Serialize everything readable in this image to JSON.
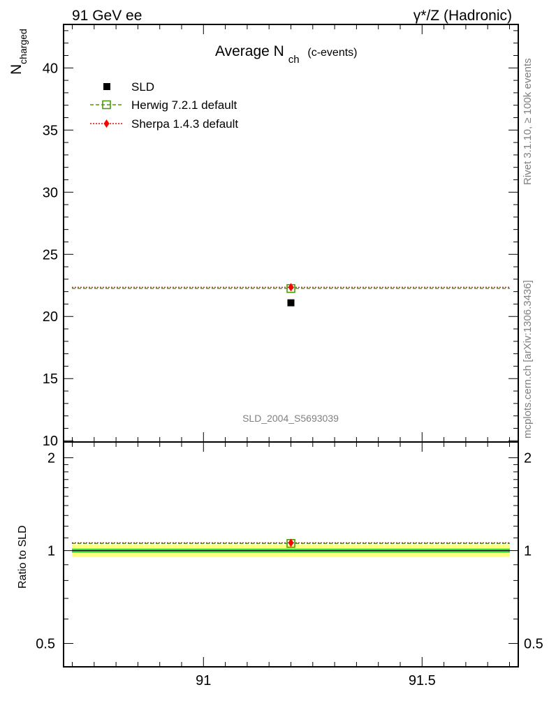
{
  "header": {
    "left": "91 GeV ee",
    "right": "γ*/Z (Hadronic)"
  },
  "side_labels": {
    "rivet": "Rivet 3.1.10, ≥ 100k events",
    "mcplots": "mcplots.cern.ch [arXiv:1306.3436]"
  },
  "watermark": "SLD_2004_S5693039",
  "colors": {
    "data": "#000000",
    "herwig": "#4a9a0a",
    "sherpa": "#ff0000",
    "band_inner": "#2fd62f",
    "band_outer": "#ffff80"
  },
  "chart_data": [
    {
      "type": "scatter",
      "panel": "main",
      "title": "Average N",
      "title_sub": "ch",
      "title_suffix": "(c-events)",
      "ylabel": "N",
      "ylabel_sub": "charged",
      "xlim": [
        90.68,
        91.72
      ],
      "ylim": [
        9.9,
        43.5
      ],
      "yticks": [
        10,
        15,
        20,
        25,
        30,
        35,
        40
      ],
      "ytick_labels": [
        "10",
        "15",
        "20",
        "25",
        "30",
        "35",
        "40"
      ],
      "legend_position": "top-left",
      "series": [
        {
          "name": "SLD",
          "style": "data",
          "x": [
            91.2
          ],
          "y": [
            21.1
          ]
        },
        {
          "name": "Herwig 7.2.1 default",
          "style": "herwig",
          "x": [
            91.2
          ],
          "y": [
            22.25
          ]
        },
        {
          "name": "Sherpa 1.4.3 default",
          "style": "sherpa",
          "x": [
            91.2
          ],
          "y": [
            22.35
          ]
        }
      ]
    },
    {
      "type": "scatter",
      "panel": "ratio",
      "ylabel": "Ratio to SLD",
      "log_y": true,
      "xlim": [
        90.68,
        91.72
      ],
      "ylim": [
        0.42,
        2.25
      ],
      "yticks": [
        0.5,
        1,
        2
      ],
      "ytick_labels": [
        "0.5",
        "1",
        "2"
      ],
      "xticks": [
        91,
        91.5
      ],
      "xtick_labels": [
        "91",
        "91.5"
      ],
      "band": {
        "inner": [
          0.985,
          1.015
        ],
        "outer": [
          0.955,
          1.045
        ]
      },
      "series": [
        {
          "name": "Herwig 7.2.1 default",
          "style": "herwig",
          "x": [
            91.2
          ],
          "y": [
            1.055
          ]
        },
        {
          "name": "Sherpa 1.4.3 default",
          "style": "sherpa",
          "x": [
            91.2
          ],
          "y": [
            1.06
          ]
        }
      ]
    }
  ]
}
